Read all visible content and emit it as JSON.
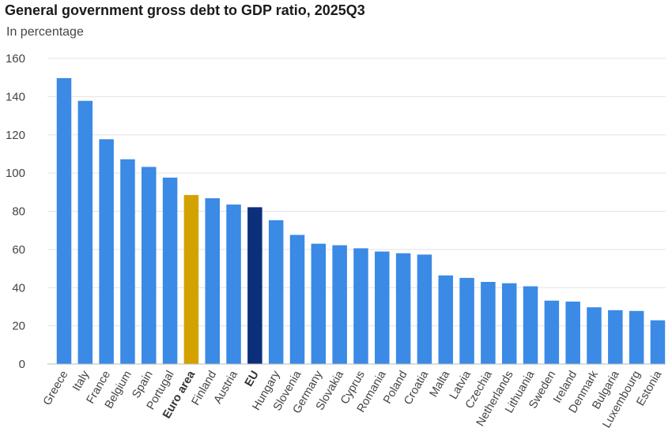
{
  "chart_data": {
    "type": "bar",
    "title": "General government gross debt to GDP ratio, 2025Q3",
    "subtitle": "In percentage",
    "xlabel": "",
    "ylabel": "",
    "ylim": [
      0,
      160
    ],
    "yticks": [
      0,
      20,
      40,
      60,
      80,
      100,
      120,
      140,
      160
    ],
    "grid": true,
    "categories": [
      "Greece",
      "Italy",
      "France",
      "Belgium",
      "Spain",
      "Portugal",
      "Euro area",
      "Finland",
      "Austria",
      "EU",
      "Hungary",
      "Slovenia",
      "Germany",
      "Slovakia",
      "Cyprus",
      "Romania",
      "Poland",
      "Croatia",
      "Malta",
      "Latvia",
      "Czechia",
      "Netherlands",
      "Lithuania",
      "Sweden",
      "Ireland",
      "Denmark",
      "Bulgaria",
      "Luxembourg",
      "Estonia"
    ],
    "values": [
      149.7,
      137.8,
      117.7,
      107.2,
      103.2,
      97.6,
      88.5,
      86.8,
      83.5,
      82.1,
      75.3,
      67.6,
      63.0,
      62.2,
      60.6,
      58.9,
      58.0,
      57.3,
      46.4,
      45.1,
      43.0,
      42.3,
      40.7,
      33.2,
      32.7,
      29.7,
      28.2,
      27.8,
      22.9
    ],
    "bold_categories": [
      "Euro area",
      "EU"
    ],
    "colors": {
      "default": "#3a8ae6",
      "Euro area": "#d4a200",
      "EU": "#0b2f7a"
    }
  }
}
